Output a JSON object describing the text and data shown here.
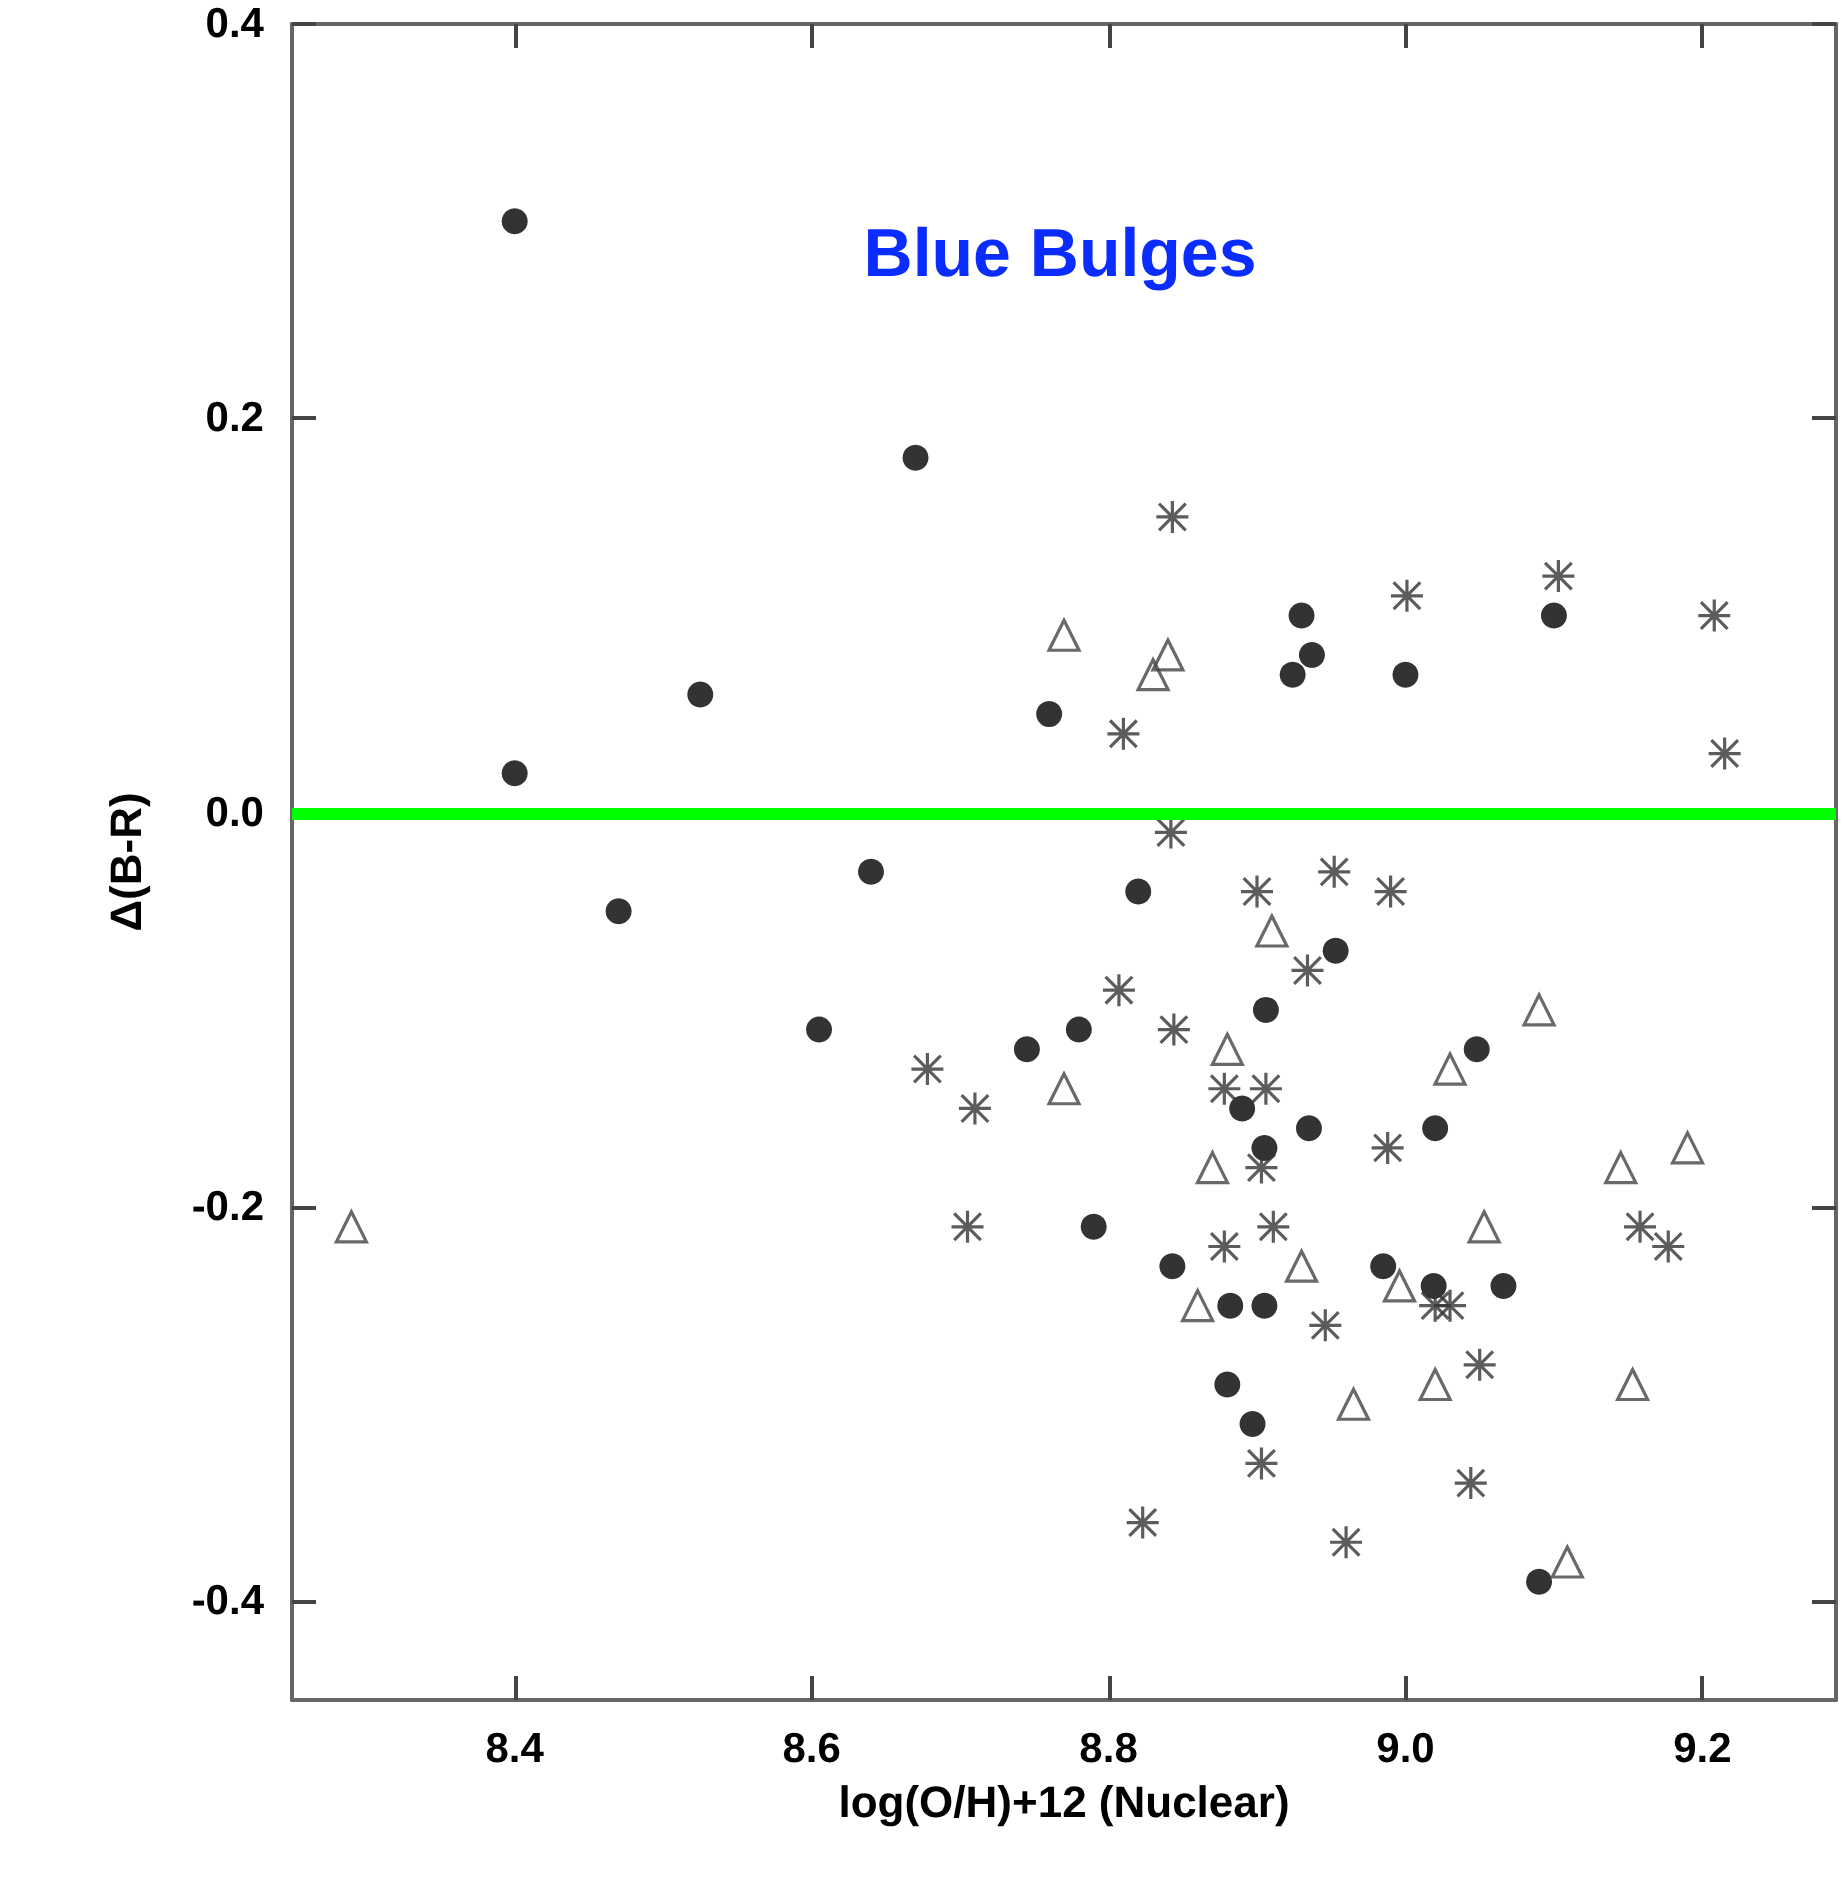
{
  "chart_data": {
    "type": "scatter",
    "title": "Blue Bulges",
    "xlabel": "log(O/H)+12 (Nuclear)",
    "ylabel": "Δ(B-R)",
    "xlim": [
      8.25,
      9.29
    ],
    "ylim": [
      -0.45,
      0.4
    ],
    "xticks": [
      8.4,
      8.6,
      8.8,
      {
        "value": 9.0,
        "label": "9.0"
      },
      9.2
    ],
    "yticks": [
      -0.4,
      -0.2,
      {
        "value": 0.0,
        "label": "0.0"
      },
      0.2,
      0.4
    ],
    "grid": false,
    "ref_lines": [
      {
        "axis": "y",
        "value": 0,
        "color": "#00ff00"
      }
    ],
    "series": [
      {
        "marker": "circle",
        "color": "#000000",
        "x": [
          8.4,
          8.4,
          8.525,
          8.67,
          8.47,
          8.605,
          8.64,
          8.745,
          8.78,
          8.79,
          8.82,
          8.76,
          8.93,
          8.937,
          8.924,
          9.0,
          9.1,
          8.953,
          8.906,
          8.89,
          8.905,
          8.935,
          9.02,
          8.843,
          8.882,
          8.905,
          8.985,
          9.019,
          8.88,
          8.897,
          9.048,
          9.066,
          9.09
        ],
        "values": [
          0.3,
          0.02,
          0.06,
          0.18,
          -0.05,
          -0.11,
          -0.03,
          -0.12,
          -0.11,
          -0.21,
          -0.04,
          0.05,
          0.1,
          0.08,
          0.07,
          0.07,
          0.1,
          -0.07,
          -0.1,
          -0.15,
          -0.17,
          -0.16,
          -0.16,
          -0.23,
          -0.25,
          -0.25,
          -0.23,
          -0.24,
          -0.29,
          -0.31,
          -0.12,
          -0.24,
          -0.39
        ]
      },
      {
        "marker": "triangle",
        "color": "#444444",
        "x": [
          8.29,
          8.77,
          8.84,
          8.83,
          8.77,
          8.91,
          8.88,
          9.03,
          8.87,
          8.93,
          8.86,
          8.996,
          9.02,
          8.965,
          9.09,
          9.145,
          9.19,
          9.053,
          9.153,
          9.109
        ],
        "values": [
          -0.21,
          0.09,
          0.08,
          0.07,
          -0.14,
          -0.06,
          -0.12,
          -0.13,
          -0.18,
          -0.23,
          -0.25,
          -0.24,
          -0.29,
          -0.3,
          -0.1,
          -0.18,
          -0.17,
          -0.21,
          -0.29,
          -0.38
        ]
      },
      {
        "marker": "cross",
        "color": "#333333",
        "x": [
          8.843,
          9.001,
          9.103,
          9.208,
          9.215,
          8.81,
          8.842,
          8.9,
          8.952,
          8.99,
          8.934,
          8.807,
          8.844,
          8.878,
          8.906,
          8.903,
          8.988,
          8.911,
          8.878,
          8.946,
          8.903,
          8.823,
          8.96,
          9.02,
          9.03,
          9.05,
          9.044,
          9.158,
          9.177,
          8.678,
          8.71,
          8.705
        ],
        "values": [
          0.15,
          0.11,
          0.12,
          0.1,
          0.03,
          0.04,
          -0.01,
          -0.04,
          -0.03,
          -0.04,
          -0.08,
          -0.09,
          -0.11,
          -0.14,
          -0.14,
          -0.18,
          -0.17,
          -0.21,
          -0.22,
          -0.26,
          -0.33,
          -0.36,
          -0.37,
          -0.25,
          -0.25,
          -0.28,
          -0.34,
          -0.21,
          -0.22,
          -0.13,
          -0.15,
          -0.21
        ]
      }
    ]
  }
}
